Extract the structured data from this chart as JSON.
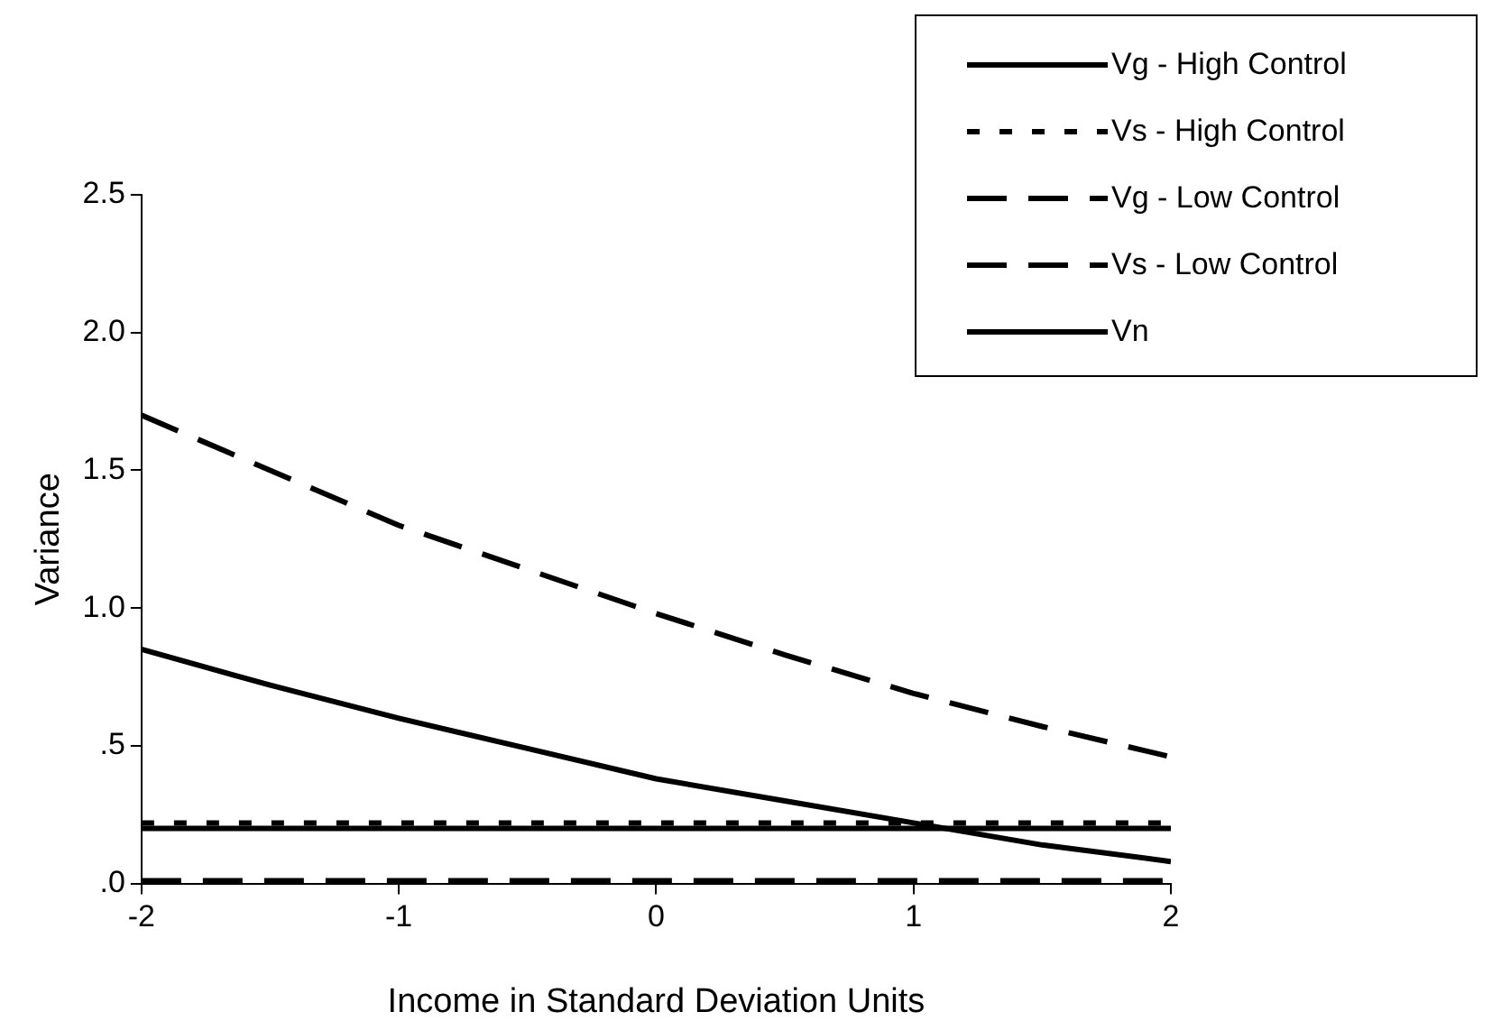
{
  "chart_data": {
    "type": "line",
    "xlabel": "Income in Standard Deviation Units",
    "ylabel": "Variance",
    "x": [
      -2,
      -1.5,
      -1,
      -0.5,
      0,
      0.5,
      1,
      1.5,
      2
    ],
    "series": [
      {
        "name": "Vg - High Control",
        "color": "#000000",
        "line_style": "solid",
        "values": [
          0.85,
          0.72,
          0.6,
          0.49,
          0.38,
          0.3,
          0.22,
          0.14,
          0.08
        ]
      },
      {
        "name": "Vs - High Control",
        "color": "#000000",
        "line_style": "dotted",
        "values": [
          0.22,
          0.22,
          0.22,
          0.22,
          0.22,
          0.22,
          0.22,
          0.22,
          0.22
        ]
      },
      {
        "name": "Vg - Low Control",
        "color": "#000000",
        "line_style": "dashed",
        "values": [
          1.7,
          1.5,
          1.3,
          1.14,
          0.98,
          0.83,
          0.69,
          0.57,
          0.46
        ]
      },
      {
        "name": "Vs - Low Control",
        "color": "#000000",
        "line_style": "dashed",
        "values": [
          0.01,
          0.01,
          0.01,
          0.01,
          0.01,
          0.01,
          0.01,
          0.01,
          0.01
        ]
      },
      {
        "name": "Vn",
        "color": "#000000",
        "line_style": "solid",
        "values": [
          0.2,
          0.2,
          0.2,
          0.2,
          0.2,
          0.2,
          0.2,
          0.2,
          0.2
        ]
      }
    ],
    "xlim": [
      -2,
      2
    ],
    "xticks": [
      -2,
      -1,
      0,
      1,
      2
    ],
    "ylim": [
      0,
      2.5
    ],
    "yticks": [
      {
        "value": 0,
        "label": ".0"
      },
      {
        "value": 0.5,
        "label": ".5"
      },
      {
        "value": 1,
        "label": "1.0"
      },
      1.5,
      {
        "value": 2,
        "label": "2.0"
      },
      2.5
    ],
    "grid": false,
    "legend": "top right",
    "marker": "none"
  }
}
